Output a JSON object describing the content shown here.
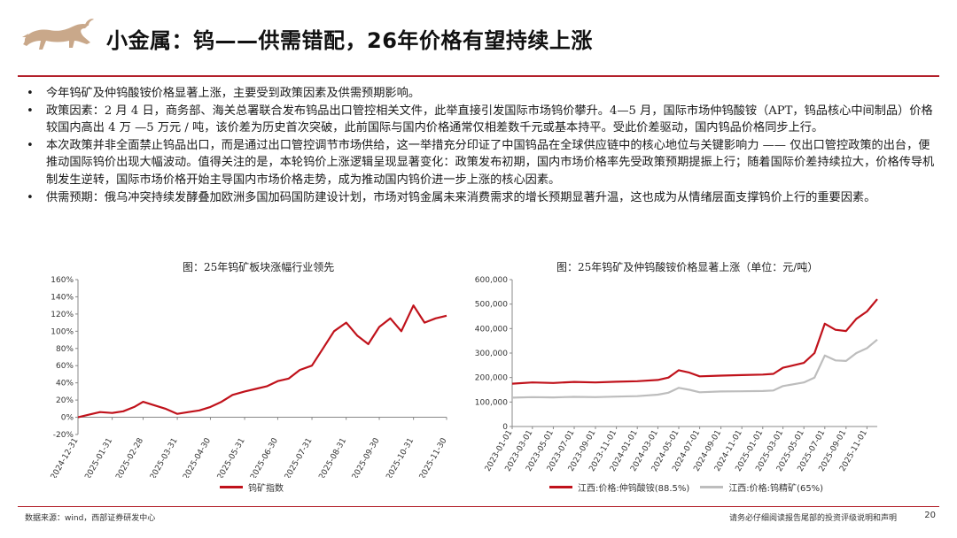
{
  "header": {
    "title": "小金属：钨——供需错配，26年价格有望持续上涨"
  },
  "bullets": [
    "今年钨矿及仲钨酸铵价格显著上涨，主要受到政策因素及供需预期影响。",
    "政策因素：2 月 4 日，商务部、海关总署联合发布钨品出口管控相关文件，此举直接引发国际市场钨价攀升。4—5 月，国际市场仲钨酸铵（APT，钨品核心中间制品）价格较国内高出 4 万 —5 万元 / 吨，该价差为历史首次突破，此前国际与国内价格通常仅相差数千元或基本持平。受此价差驱动，国内钨品价格同步上行。",
    "本次政策并非全面禁止钨品出口，而是通过出口管控调节市场供给，这一举措充分印证了中国钨品在全球供应链中的核心地位与关键影响力 —— 仅出口管控政策的出台，便推动国际钨价出现大幅波动。值得关注的是，本轮钨价上涨逻辑呈现显著变化：政策发布初期，国内市场价格率先受政策预期提振上行；随着国际价差持续拉大，价格传导机制发生逆转，国际市场价格开始主导国内市场价格走势，成为推动国内钨价进一步上涨的核心因素。",
    "供需预期：俄乌冲突持续发酵叠加欧洲多国加码国防建设计划，市场对钨金属未来消费需求的增长预期显著升温，这也成为从情绪层面支撑钨价上行的重要因素。"
  ],
  "figures": {
    "left": {
      "caption": "图：25年钨矿板块涨幅行业领先",
      "legend": [
        "钨矿指数"
      ]
    },
    "right": {
      "caption": "图：25年钨矿及仲钨酸铵价格显著上涨（单位：元/吨）",
      "legend": [
        "江西:价格:仲钨酸铵(88.5%)",
        "江西:价格:钨精矿(65%)"
      ]
    }
  },
  "chart_data": [
    {
      "type": "line",
      "xlabel": "",
      "ylabel": "",
      "ylim": [
        -20,
        160
      ],
      "yticks": [
        "-20%",
        "0%",
        "20%",
        "40%",
        "60%",
        "80%",
        "100%",
        "120%",
        "140%",
        "160%"
      ],
      "xticks": [
        "2024-12-31",
        "2025-01-31",
        "2025-02-28",
        "2025-03-31",
        "2025-04-30",
        "2025-05-31",
        "2025-06-30",
        "2025-07-31",
        "2025-08-31",
        "2025-09-30",
        "2025-10-31",
        "2025-11-30"
      ],
      "series": [
        {
          "name": "钨矿指数",
          "color": "#c0121b",
          "x": [
            "2024-12-31",
            "2025-01-10",
            "2025-01-20",
            "2025-01-31",
            "2025-02-10",
            "2025-02-20",
            "2025-02-28",
            "2025-03-10",
            "2025-03-20",
            "2025-03-31",
            "2025-04-10",
            "2025-04-20",
            "2025-04-30",
            "2025-05-10",
            "2025-05-20",
            "2025-05-31",
            "2025-06-10",
            "2025-06-20",
            "2025-06-30",
            "2025-07-10",
            "2025-07-20",
            "2025-07-31",
            "2025-08-10",
            "2025-08-20",
            "2025-08-31",
            "2025-09-10",
            "2025-09-20",
            "2025-09-30",
            "2025-10-10",
            "2025-10-20",
            "2025-10-31",
            "2025-11-10",
            "2025-11-20",
            "2025-11-30"
          ],
          "values": [
            0,
            3,
            6,
            5,
            7,
            12,
            18,
            14,
            10,
            4,
            6,
            8,
            12,
            18,
            26,
            30,
            33,
            36,
            42,
            45,
            55,
            60,
            80,
            100,
            110,
            95,
            85,
            105,
            115,
            100,
            130,
            110,
            115,
            118
          ]
        }
      ]
    },
    {
      "type": "line",
      "xlabel": "",
      "ylabel": "",
      "ylim": [
        0,
        600000
      ],
      "yticks": [
        "0",
        "100,000",
        "200,000",
        "300,000",
        "400,000",
        "500,000",
        "600,000"
      ],
      "xticks": [
        "2023-01-01",
        "2023-03-01",
        "2023-05-01",
        "2023-07-01",
        "2023-09-01",
        "2023-11-01",
        "2024-01-01",
        "2024-03-01",
        "2024-05-01",
        "2024-07-01",
        "2024-09-01",
        "2024-11-01",
        "2025-01-01",
        "2025-03-01",
        "2025-05-01",
        "2025-07-01",
        "2025-09-01",
        "2025-11-01"
      ],
      "series": [
        {
          "name": "江西:价格:仲钨酸铵(88.5%)",
          "color": "#c0121b",
          "x": [
            "2023-01-01",
            "2023-03-01",
            "2023-05-01",
            "2023-07-01",
            "2023-09-01",
            "2023-11-01",
            "2024-01-01",
            "2024-03-01",
            "2024-04-01",
            "2024-05-01",
            "2024-06-01",
            "2024-07-01",
            "2024-09-01",
            "2024-11-01",
            "2025-01-01",
            "2025-02-01",
            "2025-03-01",
            "2025-05-01",
            "2025-06-01",
            "2025-07-01",
            "2025-08-01",
            "2025-09-01",
            "2025-10-01",
            "2025-11-01",
            "2025-12-01"
          ],
          "values": [
            175000,
            180000,
            178000,
            182000,
            180000,
            183000,
            185000,
            190000,
            200000,
            230000,
            220000,
            205000,
            208000,
            210000,
            212000,
            215000,
            240000,
            260000,
            300000,
            420000,
            395000,
            390000,
            440000,
            470000,
            520000
          ]
        },
        {
          "name": "江西:价格:钨精矿(65%)",
          "color": "#bdbdbd",
          "x": [
            "2023-01-01",
            "2023-03-01",
            "2023-05-01",
            "2023-07-01",
            "2023-09-01",
            "2023-11-01",
            "2024-01-01",
            "2024-03-01",
            "2024-04-01",
            "2024-05-01",
            "2024-06-01",
            "2024-07-01",
            "2024-09-01",
            "2024-11-01",
            "2025-01-01",
            "2025-02-01",
            "2025-03-01",
            "2025-05-01",
            "2025-06-01",
            "2025-07-01",
            "2025-08-01",
            "2025-09-01",
            "2025-10-01",
            "2025-11-01",
            "2025-12-01"
          ],
          "values": [
            118000,
            120000,
            119000,
            121000,
            120000,
            122000,
            124000,
            130000,
            138000,
            158000,
            150000,
            140000,
            143000,
            144000,
            145000,
            147000,
            165000,
            180000,
            200000,
            290000,
            270000,
            268000,
            300000,
            320000,
            355000
          ]
        }
      ]
    }
  ],
  "footer": {
    "source": "数据来源：wind，西部证券研发中心",
    "disclaimer": "请务必仔细阅读报告尾部的投资评级说明和声明",
    "page": "20"
  }
}
